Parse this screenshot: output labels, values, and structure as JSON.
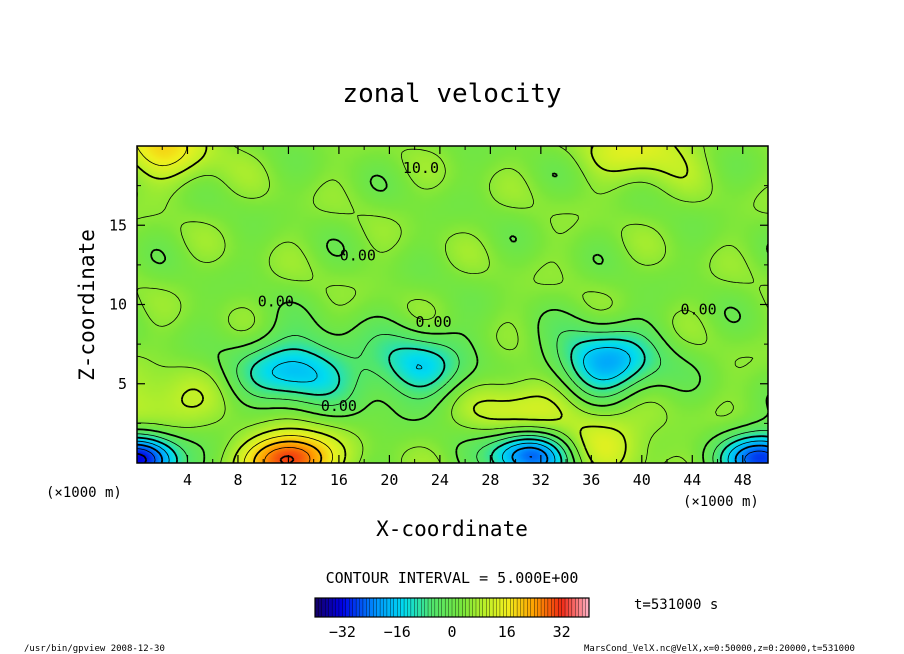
{
  "chart_data": {
    "type": "heatmap",
    "title": "zonal velocity",
    "xlabel": "X-coordinate",
    "ylabel": "Z-coordinate",
    "x_unit": "(×1000 m)",
    "y_unit": "(×1000 m)",
    "xlim": [
      0,
      50
    ],
    "ylim": [
      0,
      20
    ],
    "x_ticks": [
      "4",
      "8",
      "12",
      "16",
      "20",
      "24",
      "28",
      "32",
      "36",
      "40",
      "44",
      "48"
    ],
    "y_ticks": [
      "5",
      "10",
      "15"
    ],
    "contour_interval_label": "CONTOUR INTERVAL = 5.000E+00",
    "time_label": "t=531000 s",
    "colorbar": {
      "range": [
        -40,
        40
      ],
      "ticks": [
        "−32",
        "−16",
        "0",
        "16",
        "32"
      ]
    },
    "contour_labels": [
      {
        "text": "10.0",
        "x": 22.5,
        "y": 18.6
      },
      {
        "text": "0.00",
        "x": 17.5,
        "y": 13.1
      },
      {
        "text": "0.00",
        "x": 11.0,
        "y": 10.2
      },
      {
        "text": "0.00",
        "x": 23.5,
        "y": 8.9
      },
      {
        "text": "0.00",
        "x": 44.5,
        "y": 9.7
      },
      {
        "text": "0.00",
        "x": 16.0,
        "y": 3.6
      }
    ],
    "features": [
      {
        "kind": "min",
        "value": -18,
        "x": 12.5,
        "y": 5.8
      },
      {
        "kind": "min",
        "value": -14,
        "x": 22.0,
        "y": 6.0
      },
      {
        "kind": "min",
        "value": -20,
        "x": 37.0,
        "y": 6.2
      },
      {
        "kind": "min",
        "value": -28,
        "x": 31.0,
        "y": 0.5
      },
      {
        "kind": "min",
        "value": -35,
        "x": 0.3,
        "y": 0.3
      },
      {
        "kind": "min",
        "value": -30,
        "x": 49.7,
        "y": 0.3
      },
      {
        "kind": "max",
        "value": 34,
        "x": 12.0,
        "y": 0.2
      },
      {
        "kind": "max",
        "value": 14,
        "x": 30.5,
        "y": 3.5
      },
      {
        "kind": "max",
        "value": 12,
        "x": 37.0,
        "y": 1.6
      },
      {
        "kind": "max",
        "value": 12,
        "x": 1.5,
        "y": 3.2
      },
      {
        "kind": "max",
        "value": 16,
        "x": 2.0,
        "y": 20.0
      },
      {
        "kind": "max",
        "value": 14,
        "x": 40.0,
        "y": 20.0
      }
    ]
  },
  "footer_left": "/usr/bin/gpview  2008-12-30",
  "footer_right": "MarsCond_VelX.nc@VelX,x=0:50000,z=0:20000,t=531000"
}
